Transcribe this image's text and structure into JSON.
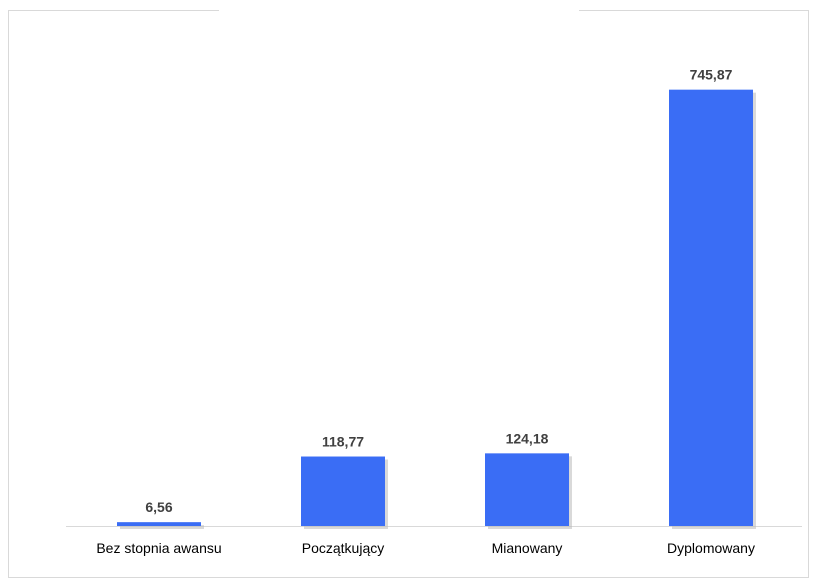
{
  "chart_data": {
    "type": "bar",
    "title": "",
    "xlabel": "",
    "ylabel": "",
    "categories": [
      "Bez stopnia awansu",
      "Początkujący",
      "Mianowany",
      "Dyplomowany"
    ],
    "values": [
      6.56,
      118.77,
      124.18,
      745.87
    ],
    "value_labels": [
      "6,56",
      "118,77",
      "124,18",
      "745,87"
    ],
    "ylim": [
      0,
      800
    ],
    "grid": false,
    "legend": "none",
    "colors": {
      "bar": "#3a6df5",
      "bar_shadow": "#b9b9b9",
      "axis": "#d9d9d9",
      "value_text": "#404040",
      "category_text": "#000000"
    }
  }
}
